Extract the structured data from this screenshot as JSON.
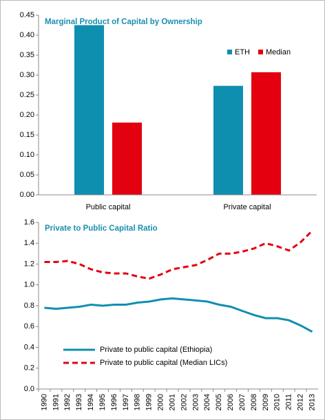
{
  "chart_data": [
    {
      "type": "bar",
      "title": "Marginal Product of Capital by Ownership",
      "categories": [
        "Public capital",
        "Private capital"
      ],
      "series": [
        {
          "name": "ETH",
          "color": "#0f8fb0",
          "values": [
            0.425,
            0.273
          ]
        },
        {
          "name": "Median",
          "color": "#e3000f",
          "values": [
            0.181,
            0.307
          ]
        }
      ],
      "ylim": [
        0,
        0.45
      ],
      "yticks": [
        {
          "value": 0,
          "label": "0.00"
        },
        {
          "value": 0.05,
          "label": "0.05"
        },
        {
          "value": 0.1,
          "label": "0.10"
        },
        {
          "value": 0.15,
          "label": "0.15"
        },
        {
          "value": 0.2,
          "label": "0.20"
        },
        {
          "value": 0.25,
          "label": "0.25"
        },
        {
          "value": 0.3,
          "label": "0.30"
        },
        {
          "value": 0.35,
          "label": "0.35"
        },
        {
          "value": 0.4,
          "label": "0.40"
        },
        {
          "value": 0.45,
          "label": "0.45"
        }
      ],
      "grid": false,
      "legend": "top-right"
    },
    {
      "type": "line",
      "title": "Private to Public Capital Ratio",
      "categories": [
        "1990",
        "1991",
        "1992",
        "1993",
        "1994",
        "1995",
        "1996",
        "1997",
        "1998",
        "1999",
        "2000",
        "2001",
        "2002",
        "2003",
        "2004",
        "2005",
        "2006",
        "2007",
        "2008",
        "2009",
        "2010",
        "2011",
        "2012",
        "2013"
      ],
      "series": [
        {
          "name": "Private to public capital (Ethiopia)",
          "color": "#0f8fb0",
          "line_style": "solid",
          "values": [
            0.78,
            0.77,
            0.78,
            0.79,
            0.81,
            0.8,
            0.81,
            0.81,
            0.83,
            0.84,
            0.86,
            0.87,
            0.86,
            0.85,
            0.84,
            0.81,
            0.79,
            0.75,
            0.71,
            0.68,
            0.68,
            0.66,
            0.61,
            0.55
          ]
        },
        {
          "name": "Private to public capital (Median LICs)",
          "color": "#e3000f",
          "line_style": "dashed",
          "values": [
            1.22,
            1.22,
            1.23,
            1.2,
            1.15,
            1.12,
            1.11,
            1.11,
            1.08,
            1.06,
            1.1,
            1.15,
            1.17,
            1.19,
            1.24,
            1.3,
            1.3,
            1.32,
            1.35,
            1.4,
            1.37,
            1.33,
            1.41,
            1.52
          ]
        }
      ],
      "ylim": [
        0,
        1.6
      ],
      "yticks": [
        {
          "value": 0,
          "label": "0.0"
        },
        {
          "value": 0.2,
          "label": "0.2"
        },
        {
          "value": 0.4,
          "label": "0.4"
        },
        {
          "value": 0.6,
          "label": "0.6"
        },
        {
          "value": 0.8,
          "label": "0.8"
        },
        {
          "value": 1,
          "label": "1.0"
        },
        {
          "value": 1.2,
          "label": "1.2"
        },
        {
          "value": 1.4,
          "label": "1.4"
        },
        {
          "value": 1.6,
          "label": "1.6"
        }
      ],
      "grid": false,
      "legend": "bottom-left"
    }
  ]
}
